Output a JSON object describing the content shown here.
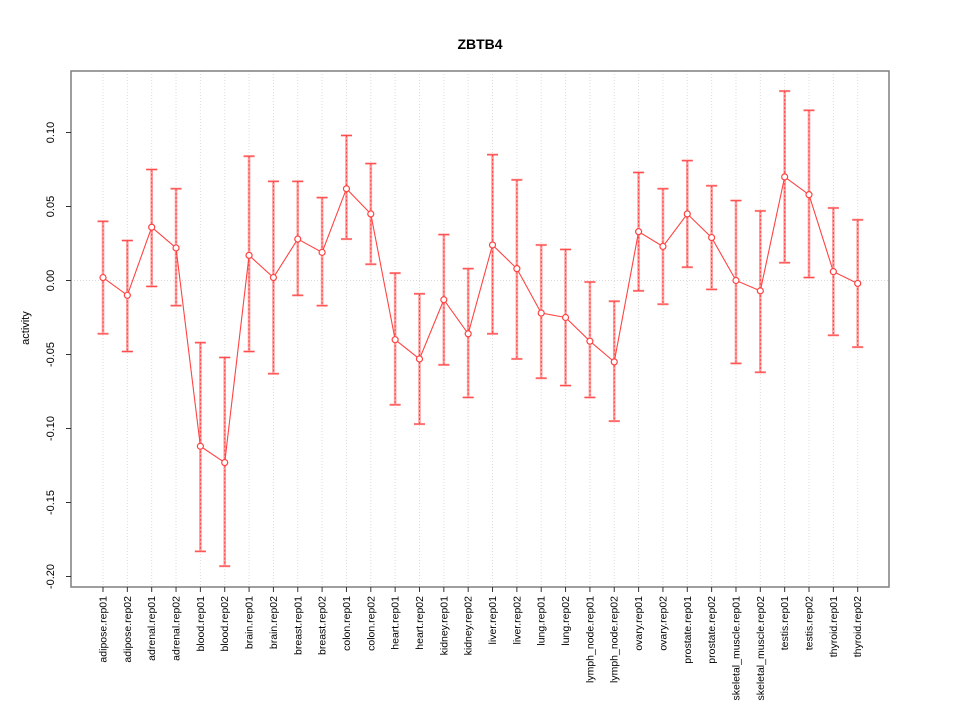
{
  "chart_data": {
    "type": "line",
    "title": "ZBTB4",
    "xlabel": "",
    "ylabel": "activity",
    "ylim": [
      -0.207,
      0.142
    ],
    "yticks": [
      0.1,
      0.05,
      0.0,
      -0.05,
      -0.1,
      -0.15,
      -0.2
    ],
    "ytick_labels": [
      "0.10",
      "0.05",
      "0.00",
      "-0.05",
      "-0.10",
      "-0.15",
      "-0.20"
    ],
    "grid": "vertical dotted gridline at each category; horizontal dotted line at y=0",
    "legend_position": "none",
    "point_style": "open-circle with error bars",
    "colors": {
      "line": "#ff4343",
      "point": "#ff4343",
      "error_bar_fill": "#ffa0a0",
      "error_bar_dash": "#ff4343",
      "gridline": "#dcdcdc",
      "zero_line": "#d9d9d9",
      "frame": "#7f7f7f",
      "text": "#000000"
    },
    "categories": [
      "adipose.rep01",
      "adipose.rep02",
      "adrenal.rep01",
      "adrenal.rep02",
      "blood.rep01",
      "blood.rep02",
      "brain.rep01",
      "brain.rep02",
      "breast.rep01",
      "breast.rep02",
      "colon.rep01",
      "colon.rep02",
      "heart.rep01",
      "heart.rep02",
      "kidney.rep01",
      "kidney.rep02",
      "liver.rep01",
      "liver.rep02",
      "lung.rep01",
      "lung.rep02",
      "lymph_node.rep01",
      "lymph_node.rep02",
      "ovary.rep01",
      "ovary.rep02",
      "prostate.rep01",
      "prostate.rep02",
      "skeletal_muscle.rep01",
      "skeletal_muscle.rep02",
      "testis.rep01",
      "testis.rep02",
      "thyroid.rep01",
      "thyroid.rep02"
    ],
    "series": [
      {
        "name": "activity",
        "values": [
          0.002,
          -0.01,
          0.036,
          0.022,
          -0.112,
          -0.123,
          0.017,
          0.002,
          0.028,
          0.019,
          0.062,
          0.045,
          -0.04,
          -0.053,
          -0.013,
          -0.036,
          0.024,
          0.008,
          -0.022,
          -0.025,
          -0.041,
          -0.055,
          0.033,
          0.023,
          0.045,
          0.029,
          0.0,
          -0.007,
          0.07,
          0.058,
          0.006,
          -0.002
        ],
        "lower": [
          -0.036,
          -0.048,
          -0.004,
          -0.017,
          -0.183,
          -0.193,
          -0.048,
          -0.063,
          -0.01,
          -0.017,
          0.028,
          0.011,
          -0.084,
          -0.097,
          -0.057,
          -0.079,
          -0.036,
          -0.053,
          -0.066,
          -0.071,
          -0.079,
          -0.095,
          -0.007,
          -0.016,
          0.009,
          -0.006,
          -0.056,
          -0.062,
          0.012,
          0.002,
          -0.037,
          -0.045
        ],
        "upper": [
          0.04,
          0.027,
          0.075,
          0.062,
          -0.042,
          -0.052,
          0.084,
          0.067,
          0.067,
          0.056,
          0.098,
          0.079,
          0.005,
          -0.009,
          0.031,
          0.008,
          0.085,
          0.068,
          0.024,
          0.021,
          -0.001,
          -0.014,
          0.073,
          0.062,
          0.081,
          0.064,
          0.054,
          0.047,
          0.128,
          0.115,
          0.049,
          0.041
        ]
      }
    ]
  }
}
